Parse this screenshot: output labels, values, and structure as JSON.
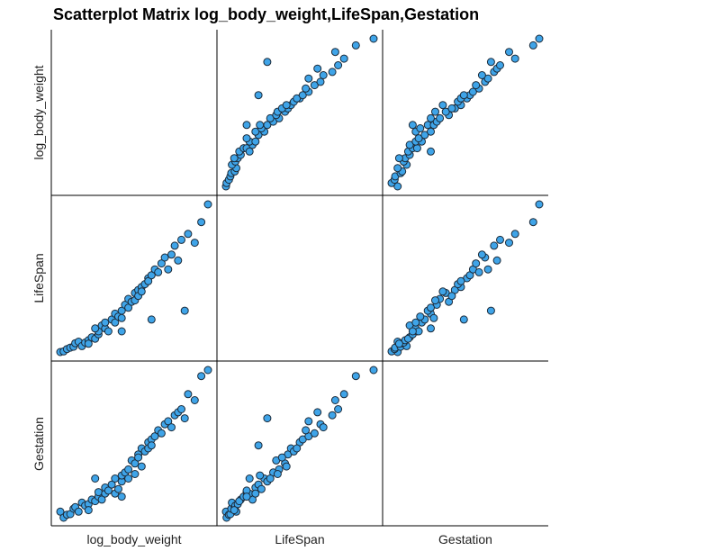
{
  "title": "Scatterplot Matrix log_body_weight,LifeSpan,Gestation",
  "chart_data": {
    "type": "scatter",
    "title": "Scatterplot Matrix log_body_weight,LifeSpan,Gestation",
    "variables": [
      "log_body_weight",
      "LifeSpan",
      "Gestation"
    ],
    "grid": false,
    "marker_color": "#3fa4e8",
    "records": [
      {
        "log_body_weight": 0.15,
        "LifeSpan": 0.2,
        "Gestation": 0.5
      },
      {
        "log_body_weight": 0.25,
        "LifeSpan": 0.22,
        "Gestation": 0.3
      },
      {
        "log_body_weight": 0.35,
        "LifeSpan": 0.3,
        "Gestation": 0.4
      },
      {
        "log_body_weight": 0.45,
        "LifeSpan": 0.35,
        "Gestation": 0.42
      },
      {
        "log_body_weight": 0.55,
        "LifeSpan": 0.38,
        "Gestation": 0.6
      },
      {
        "log_body_weight": 0.6,
        "LifeSpan": 0.5,
        "Gestation": 0.65
      },
      {
        "log_body_weight": 0.7,
        "LifeSpan": 0.55,
        "Gestation": 0.5
      },
      {
        "log_body_weight": 0.8,
        "LifeSpan": 0.4,
        "Gestation": 0.8
      },
      {
        "log_body_weight": 0.9,
        "LifeSpan": 0.52,
        "Gestation": 0.7
      },
      {
        "log_body_weight": 1.0,
        "LifeSpan": 0.6,
        "Gestation": 0.75
      },
      {
        "log_body_weight": 1.0,
        "LifeSpan": 0.48,
        "Gestation": 0.55
      },
      {
        "log_body_weight": 1.1,
        "LifeSpan": 0.7,
        "Gestation": 0.9
      },
      {
        "log_body_weight": 1.2,
        "LifeSpan": 0.65,
        "Gestation": 0.85
      },
      {
        "log_body_weight": 1.3,
        "LifeSpan": 0.8,
        "Gestation": 1.0
      },
      {
        "log_body_weight": 1.3,
        "LifeSpan": 0.9,
        "Gestation": 1.15
      },
      {
        "log_body_weight": 1.4,
        "LifeSpan": 1.1,
        "Gestation": 0.9
      },
      {
        "log_body_weight": 1.5,
        "LifeSpan": 1.0,
        "Gestation": 1.1
      },
      {
        "log_body_weight": 1.5,
        "LifeSpan": 1.2,
        "Gestation": 1.3
      },
      {
        "log_body_weight": 1.6,
        "LifeSpan": 0.9,
        "Gestation": 1.2
      },
      {
        "log_body_weight": 1.7,
        "LifeSpan": 1.3,
        "Gestation": 1.4
      },
      {
        "log_body_weight": 1.8,
        "LifeSpan": 1.2,
        "Gestation": 1.1
      },
      {
        "log_body_weight": 1.8,
        "LifeSpan": 1.5,
        "Gestation": 1.6
      },
      {
        "log_body_weight": 1.9,
        "LifeSpan": 1.4,
        "Gestation": 1.25
      },
      {
        "log_body_weight": 2.0,
        "LifeSpan": 1.6,
        "Gestation": 1.5
      },
      {
        "log_body_weight": 2.0,
        "LifeSpan": 1.35,
        "Gestation": 1.7
      },
      {
        "log_body_weight": 2.1,
        "LifeSpan": 1.8,
        "Gestation": 1.8
      },
      {
        "log_body_weight": 2.2,
        "LifeSpan": 1.7,
        "Gestation": 1.6
      },
      {
        "log_body_weight": 2.2,
        "LifeSpan": 2.0,
        "Gestation": 1.9
      },
      {
        "log_body_weight": 2.3,
        "LifeSpan": 1.9,
        "Gestation": 2.2
      },
      {
        "log_body_weight": 2.4,
        "LifeSpan": 2.2,
        "Gestation": 2.1
      },
      {
        "log_body_weight": 2.4,
        "LifeSpan": 1.95,
        "Gestation": 1.75
      },
      {
        "log_body_weight": 2.5,
        "LifeSpan": 2.3,
        "Gestation": 2.4
      },
      {
        "log_body_weight": 2.5,
        "LifeSpan": 2.1,
        "Gestation": 2.3
      },
      {
        "log_body_weight": 2.6,
        "LifeSpan": 2.4,
        "Gestation": 2.6
      },
      {
        "log_body_weight": 2.6,
        "LifeSpan": 2.25,
        "Gestation": 2.0
      },
      {
        "log_body_weight": 2.7,
        "LifeSpan": 2.5,
        "Gestation": 2.5
      },
      {
        "log_body_weight": 2.8,
        "LifeSpan": 2.7,
        "Gestation": 2.8
      },
      {
        "log_body_weight": 2.8,
        "LifeSpan": 2.6,
        "Gestation": 2.6
      },
      {
        "log_body_weight": 2.9,
        "LifeSpan": 2.8,
        "Gestation": 2.9
      },
      {
        "log_body_weight": 3.0,
        "LifeSpan": 3.0,
        "Gestation": 3.0
      },
      {
        "log_body_weight": 3.1,
        "LifeSpan": 2.9,
        "Gestation": 3.2
      },
      {
        "log_body_weight": 3.2,
        "LifeSpan": 3.2,
        "Gestation": 3.1
      },
      {
        "log_body_weight": 3.3,
        "LifeSpan": 3.4,
        "Gestation": 3.4
      },
      {
        "log_body_weight": 3.4,
        "LifeSpan": 3.0,
        "Gestation": 3.5
      },
      {
        "log_body_weight": 3.5,
        "LifeSpan": 3.5,
        "Gestation": 3.3
      },
      {
        "log_body_weight": 3.6,
        "LifeSpan": 3.8,
        "Gestation": 3.7
      },
      {
        "log_body_weight": 3.7,
        "LifeSpan": 3.3,
        "Gestation": 3.8
      },
      {
        "log_body_weight": 3.8,
        "LifeSpan": 4.0,
        "Gestation": 3.9
      },
      {
        "log_body_weight": 4.0,
        "LifeSpan": 4.2,
        "Gestation": 4.4
      },
      {
        "log_body_weight": 4.2,
        "LifeSpan": 3.9,
        "Gestation": 4.2
      },
      {
        "log_body_weight": 4.4,
        "LifeSpan": 4.6,
        "Gestation": 5.0
      },
      {
        "log_body_weight": 4.6,
        "LifeSpan": 5.2,
        "Gestation": 5.2
      },
      {
        "log_body_weight": 2.0,
        "LifeSpan": 0.9,
        "Gestation": 1.0
      },
      {
        "log_body_weight": 1.2,
        "LifeSpan": 1.0,
        "Gestation": 1.6
      },
      {
        "log_body_weight": 2.9,
        "LifeSpan": 1.3,
        "Gestation": 2.7
      },
      {
        "log_body_weight": 3.9,
        "LifeSpan": 1.6,
        "Gestation": 3.6
      }
    ]
  }
}
